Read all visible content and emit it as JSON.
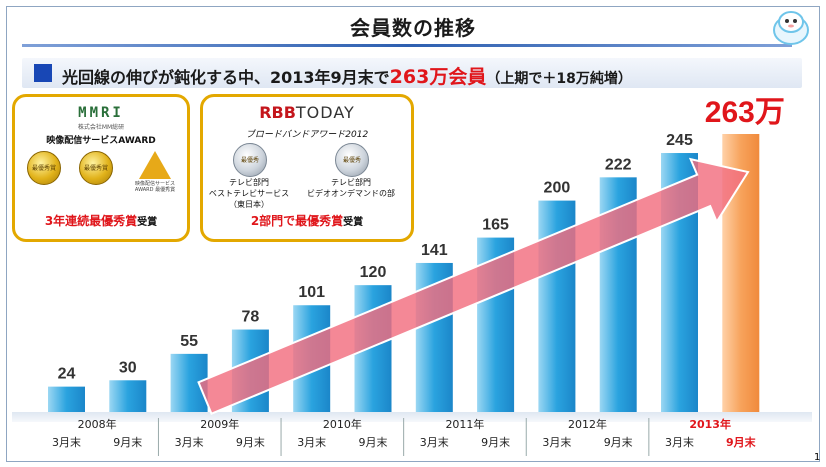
{
  "title": "会員数の推移",
  "subtitle": {
    "lead": "光回線の伸びが鈍化する中、2013年9月末で",
    "highlight": "263万会員",
    "note": "（上期で＋18万純増）"
  },
  "award_mmri": {
    "logo": "MMRI",
    "logo_sub": "株式会社MM総研",
    "name": "映像配信サービスAWARD",
    "medals": [
      "最優秀賞",
      "最優秀賞"
    ],
    "star_text": "映像配信サービス AWARD 最優秀賞",
    "prize": "3年連続最優秀賞",
    "prize_suffix": "受賞"
  },
  "award_rbb": {
    "logo_mark": "RBB",
    "logo_text": "TODAY",
    "name": "ブロードバンドアワード2012",
    "medals": [
      "最優秀",
      "最優秀"
    ],
    "label1": "テレビ部門\nベストテレビサービス\n（東日本）",
    "label2": "テレビ部門\nビデオオンデマンドの部",
    "prize": "2部門で最優秀賞",
    "prize_suffix": "受賞"
  },
  "chart_data": {
    "type": "bar",
    "categories": [
      "2008年3月末",
      "2008年9月末",
      "2009年3月末",
      "2009年9月末",
      "2010年3月末",
      "2010年9月末",
      "2011年3月末",
      "2011年9月末",
      "2012年3月末",
      "2012年9月末",
      "2013年3月末",
      "2013年9月末"
    ],
    "values": [
      24,
      30,
      55,
      78,
      101,
      120,
      141,
      165,
      200,
      222,
      245,
      263
    ],
    "value_labels": [
      "24",
      "30",
      "55",
      "78",
      "101",
      "120",
      "141",
      "165",
      "200",
      "222",
      "245",
      "263万"
    ],
    "year_labels": [
      "2008年",
      "2009年",
      "2010年",
      "2011年",
      "2012年",
      "2013年"
    ],
    "tick_labels": [
      "3月末",
      "9月末",
      "3月末",
      "9月末",
      "3月末",
      "9月末",
      "3月末",
      "9月末",
      "3月末",
      "9月末",
      "3月末",
      "9月末"
    ],
    "ylim": [
      0,
      263
    ],
    "colors": {
      "bar": "#2aa3df",
      "bar_light": "#9bd7f3",
      "highlight_bar": "#f7a35c",
      "arrow": "#f26e7f",
      "highlight_text": "#e0161b"
    }
  },
  "page_number": "1"
}
